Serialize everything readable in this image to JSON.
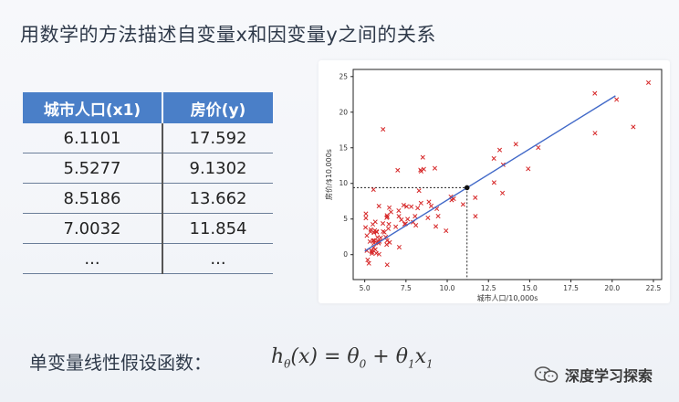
{
  "title": "用数学的方法描述自变量x和因变量y之间的关系",
  "table": {
    "headers": [
      "城市人口(x1)",
      "房价(y)"
    ],
    "rows": [
      [
        "6.1101",
        "17.592"
      ],
      [
        "5.5277",
        "9.1302"
      ],
      [
        "8.5186",
        "13.662"
      ],
      [
        "7.0032",
        "11.854"
      ],
      [
        "...",
        "..."
      ]
    ]
  },
  "chart_data": {
    "type": "scatter",
    "xlabel": "城市人口/10,000s",
    "ylabel": "房价/$10,000s",
    "xlim": [
      4.3,
      23.0
    ],
    "ylim": [
      -3.5,
      26
    ],
    "xticks": [
      "5.0",
      "7.5",
      "10.0",
      "12.5",
      "15.0",
      "17.5",
      "20.0",
      "22.5"
    ],
    "xtick_values": [
      5.0,
      7.5,
      10.0,
      12.5,
      15.0,
      17.5,
      20.0,
      22.5
    ],
    "yticks": [
      "0",
      "5",
      "10",
      "15",
      "20",
      "25"
    ],
    "ytick_values": [
      0,
      5,
      10,
      15,
      20,
      25
    ],
    "marker_color": "#d62728",
    "line_color": "#4169c8",
    "fit_line": [
      [
        5.0,
        0.5
      ],
      [
        20.2,
        22.3
      ]
    ],
    "highlight_point": [
      11.2,
      9.4
    ],
    "points": [
      [
        6.11,
        17.59
      ],
      [
        5.53,
        9.13
      ],
      [
        8.52,
        13.66
      ],
      [
        7.0,
        11.85
      ],
      [
        5.86,
        6.82
      ],
      [
        8.38,
        11.89
      ],
      [
        7.48,
        4.35
      ],
      [
        8.58,
        12.0
      ],
      [
        6.49,
        6.6
      ],
      [
        5.05,
        3.82
      ],
      [
        5.71,
        3.25
      ],
      [
        14.16,
        15.51
      ],
      [
        5.73,
        3.16
      ],
      [
        8.41,
        7.23
      ],
      [
        5.64,
        0.72
      ],
      [
        5.37,
        3.51
      ],
      [
        6.37,
        5.3
      ],
      [
        5.13,
        0.56
      ],
      [
        6.43,
        3.65
      ],
      [
        7.07,
        5.39
      ],
      [
        6.19,
        3.14
      ],
      [
        20.27,
        21.77
      ],
      [
        5.49,
        4.26
      ],
      [
        6.33,
        5.19
      ],
      [
        5.56,
        3.08
      ],
      [
        18.95,
        22.64
      ],
      [
        12.83,
        13.5
      ],
      [
        10.96,
        7.05
      ],
      [
        13.18,
        14.69
      ],
      [
        22.2,
        24.15
      ],
      [
        5.25,
        -1.22
      ],
      [
        6.59,
        5.99
      ],
      [
        9.25,
        12.13
      ],
      [
        5.89,
        1.85
      ],
      [
        8.21,
        6.54
      ],
      [
        7.93,
        4.56
      ],
      [
        8.1,
        4.12
      ],
      [
        5.61,
        3.39
      ],
      [
        12.84,
        10.12
      ],
      [
        6.35,
        5.5
      ],
      [
        5.41,
        0.56
      ],
      [
        6.88,
        3.91
      ],
      [
        11.71,
        5.39
      ],
      [
        5.77,
        2.44
      ],
      [
        7.82,
        6.73
      ],
      [
        7.09,
        1.05
      ],
      [
        5.07,
        5.13
      ],
      [
        5.8,
        1.84
      ],
      [
        11.7,
        8.0
      ],
      [
        5.54,
        1.02
      ],
      [
        7.54,
        6.75
      ],
      [
        5.31,
        1.84
      ],
      [
        7.42,
        4.29
      ],
      [
        7.6,
        4.99
      ],
      [
        6.33,
        1.42
      ],
      [
        6.36,
        -1.42
      ],
      [
        6.27,
        2.48
      ],
      [
        5.64,
        4.6
      ],
      [
        9.31,
        3.96
      ],
      [
        9.45,
        5.41
      ],
      [
        8.83,
        5.17
      ],
      [
        5.18,
        -0.74
      ],
      [
        21.28,
        17.93
      ],
      [
        14.91,
        12.05
      ],
      [
        18.96,
        17.05
      ],
      [
        7.22,
        4.89
      ],
      [
        5.07,
        5.74
      ],
      [
        9.93,
        3.35
      ],
      [
        5.97,
        2.37
      ],
      [
        5.58,
        1.98
      ],
      [
        6.51,
        1.72
      ],
      [
        10.27,
        7.67
      ],
      [
        6.36,
        1.98
      ],
      [
        5.84,
        1.61
      ],
      [
        13.35,
        8.64
      ],
      [
        5.43,
        0.39
      ],
      [
        5.51,
        1.99
      ],
      [
        5.57,
        1.64
      ],
      [
        5.7,
        0.19
      ],
      [
        10.39,
        7.84
      ],
      [
        7.36,
        6.95
      ],
      [
        8.05,
        5.39
      ],
      [
        9.03,
        6.83
      ],
      [
        6.46,
        4.28
      ],
      [
        10.22,
        8.12
      ],
      [
        5.87,
        0.06
      ],
      [
        5.13,
        2.67
      ],
      [
        6.11,
        3.25
      ],
      [
        7.06,
        6.18
      ],
      [
        8.29,
        8.98
      ],
      [
        5.44,
        0.16
      ],
      [
        8.89,
        7.41
      ],
      [
        9.37,
        6.44
      ],
      [
        13.39,
        12.62
      ],
      [
        6.1,
        4.38
      ],
      [
        5.36,
        3.22
      ],
      [
        15.52,
        15.03
      ],
      [
        8.42,
        11.7
      ]
    ]
  },
  "formula_label": "单变量线性假设函数：",
  "formula": {
    "h": "h",
    "h_sub": "θ",
    "arg": "(x)",
    "eq": " = ",
    "t0": "θ",
    "t0_sub": "0",
    "plus": " + ",
    "t1": "θ",
    "t1_sub": "1",
    "x": "x",
    "x_sub": "1"
  },
  "watermark": {
    "text": "深度学习探索",
    "icon": "wechat-chat-icon"
  }
}
